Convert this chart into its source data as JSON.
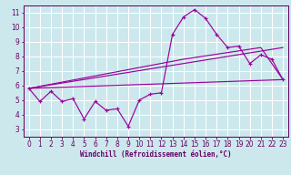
{
  "background_color": "#cce8ed",
  "grid_color": "#ffffff",
  "line_color": "#990099",
  "xlabel": "Windchill (Refroidissement éolien,°C)",
  "xlabel_color": "#660066",
  "tick_color": "#660066",
  "spine_color": "#660066",
  "ylim": [
    2.5,
    11.5
  ],
  "xlim": [
    -0.5,
    23.5
  ],
  "yticks": [
    3,
    4,
    5,
    6,
    7,
    8,
    9,
    10,
    11
  ],
  "xticks": [
    0,
    1,
    2,
    3,
    4,
    5,
    6,
    7,
    8,
    9,
    10,
    11,
    12,
    13,
    14,
    15,
    16,
    17,
    18,
    19,
    20,
    21,
    22,
    23
  ],
  "line1_x": [
    0,
    1,
    2,
    3,
    4,
    5,
    6,
    7,
    8,
    9,
    10,
    11,
    12,
    13,
    14,
    15,
    16,
    17,
    18,
    19,
    20,
    21,
    22,
    23
  ],
  "line1_y": [
    5.8,
    4.9,
    5.6,
    4.9,
    5.1,
    3.7,
    4.9,
    4.3,
    4.4,
    3.2,
    5.0,
    5.4,
    5.5,
    9.5,
    10.7,
    11.2,
    10.6,
    9.5,
    8.6,
    8.7,
    7.5,
    8.1,
    7.8,
    6.4
  ],
  "line2_x": [
    0,
    23
  ],
  "line2_y": [
    5.8,
    6.4
  ],
  "line3_x": [
    0,
    23
  ],
  "line3_y": [
    5.8,
    8.6
  ],
  "line4_x": [
    0,
    14,
    21,
    23
  ],
  "line4_y": [
    5.8,
    7.8,
    8.6,
    6.4
  ]
}
